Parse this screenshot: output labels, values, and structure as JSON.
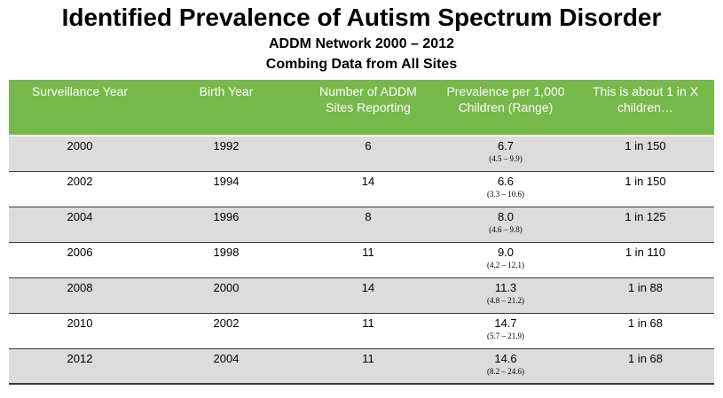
{
  "title": "Identified Prevalence of Autism Spectrum Disorder",
  "subtitle_line1": "ADDM Network 2000 – 2012",
  "subtitle_line2": "Combing Data from All Sites",
  "colors": {
    "header_bg": "#77b84a",
    "header_text": "#ffffff",
    "stripe": "#dcdcdc"
  },
  "chart_data": {
    "type": "table",
    "columns": [
      "Surveillance Year",
      "Birth Year",
      "Number of ADDM Sites Reporting",
      "Prevalence per 1,000 Children (Range)",
      "This is about 1 in X children…"
    ],
    "rows": [
      {
        "surveillance_year": "2000",
        "birth_year": "1992",
        "sites": "6",
        "prevalence": "6.7",
        "range": "(4.5 – 9.9)",
        "one_in_x": "1 in 150"
      },
      {
        "surveillance_year": "2002",
        "birth_year": "1994",
        "sites": "14",
        "prevalence": "6.6",
        "range": "(3.3 – 10.6)",
        "one_in_x": "1 in 150"
      },
      {
        "surveillance_year": "2004",
        "birth_year": "1996",
        "sites": "8",
        "prevalence": "8.0",
        "range": "(4.6 – 9.8)",
        "one_in_x": "1 in 125"
      },
      {
        "surveillance_year": "2006",
        "birth_year": "1998",
        "sites": "11",
        "prevalence": "9.0",
        "range": "(4.2 – 12.1)",
        "one_in_x": "1 in 110"
      },
      {
        "surveillance_year": "2008",
        "birth_year": "2000",
        "sites": "14",
        "prevalence": "11.3",
        "range": "(4.8 – 21.2)",
        "one_in_x": "1 in 88"
      },
      {
        "surveillance_year": "2010",
        "birth_year": "2002",
        "sites": "11",
        "prevalence": "14.7",
        "range": "(5.7 – 21.9)",
        "one_in_x": "1 in 68"
      },
      {
        "surveillance_year": "2012",
        "birth_year": "2004",
        "sites": "11",
        "prevalence": "14.6",
        "range": "(8.2 – 24.6)",
        "one_in_x": "1 in 68"
      }
    ]
  }
}
